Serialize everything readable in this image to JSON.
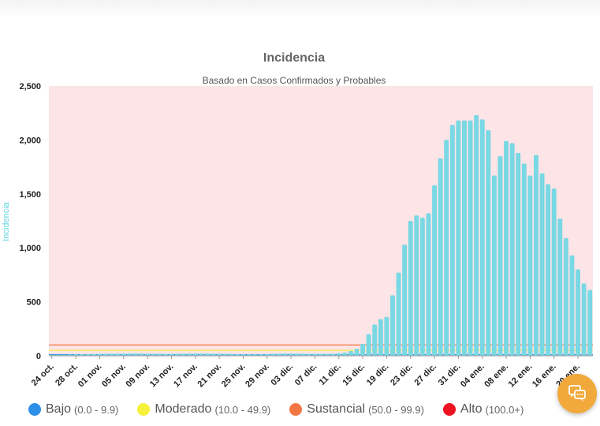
{
  "chart_data": {
    "type": "bar",
    "title": "Incidencia",
    "subtitle": "Basado en Casos Confirmados y Probables",
    "ylabel": "Incidencia",
    "xlabel": "",
    "ylim": [
      0,
      2500
    ],
    "yticks": [
      "0",
      "500",
      "1,000",
      "1,500",
      "2,000",
      "2,500"
    ],
    "ytick_values": [
      0,
      500,
      1000,
      1500,
      2000,
      2500
    ],
    "xtick_labels": [
      "24 oct.",
      "28 oct.",
      "01 nov.",
      "05 nov.",
      "09 nov.",
      "13 nov.",
      "17 nov.",
      "21 nov.",
      "25 nov.",
      "29 nov.",
      "03 dic.",
      "07 dic.",
      "11 dic.",
      "15 dic.",
      "19 dic.",
      "23 dic.",
      "27 dic.",
      "31 dic.",
      "04 ene.",
      "08 ene.",
      "12 ene.",
      "16 ene.",
      "20 ene."
    ],
    "bar_color": "#78d8e3",
    "background_color": "#fde4e7",
    "values": [
      8,
      9,
      10,
      12,
      14,
      15,
      16,
      17,
      18,
      19,
      20,
      20,
      21,
      22,
      22,
      21,
      20,
      19,
      18,
      17,
      18,
      19,
      20,
      21,
      22,
      22,
      21,
      20,
      19,
      18,
      17,
      16,
      16,
      15,
      14,
      15,
      16,
      18,
      20,
      22,
      22,
      21,
      20,
      19,
      18,
      17,
      18,
      20,
      24,
      30,
      45,
      65,
      110,
      200,
      290,
      340,
      360,
      560,
      770,
      1030,
      1250,
      1300,
      1280,
      1320,
      1580,
      1830,
      2000,
      2140,
      2180,
      2180,
      2180,
      2230,
      2190,
      2090,
      1670,
      1850,
      1990,
      1970,
      1880,
      1780,
      1670,
      1860,
      1690,
      1590,
      1550,
      1270,
      1090,
      930,
      800,
      670,
      610
    ],
    "legend_position": "bottom",
    "threshold_lines": [
      {
        "name": "Bajo",
        "value": 10,
        "color": "#2e8fe9"
      },
      {
        "name": "Moderado",
        "value": 50,
        "color": "#f5f03a"
      },
      {
        "name": "Sustancial",
        "value": 100,
        "color": "#f08050"
      }
    ],
    "legend": [
      {
        "name": "Bajo",
        "range": "(0.0 - 9.9)",
        "color": "#2e8fe9"
      },
      {
        "name": "Moderado",
        "range": "(10.0 - 49.9)",
        "color": "#f5f03a"
      },
      {
        "name": "Sustancial",
        "range": "(50.0 - 99.9)",
        "color": "#f37745"
      },
      {
        "name": "Alto",
        "range": "(100.0+)",
        "color": "#ee1122"
      }
    ]
  },
  "fab": {
    "icon": "chat-bubbles-icon",
    "color": "#f2a93b"
  }
}
